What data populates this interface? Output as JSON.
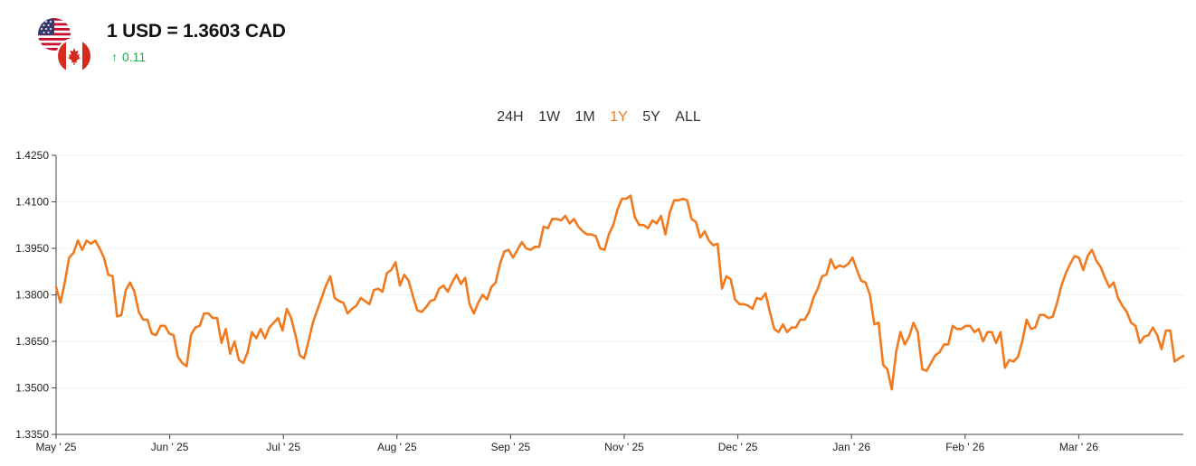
{
  "header": {
    "rate_text": "1 USD = 1.3603 CAD",
    "change_arrow": "↑",
    "change_value": "0.11",
    "change_color": "#22b04b",
    "base_flag": "us-flag-icon",
    "quote_flag": "canada-flag-icon"
  },
  "range_selector": {
    "options": [
      "24H",
      "1W",
      "1M",
      "1Y",
      "5Y",
      "ALL"
    ],
    "selected": "1Y",
    "active_color": "#f07a1f"
  },
  "chart_data": {
    "type": "line",
    "line_color": "#f07a1f",
    "title": "",
    "xlabel": "",
    "ylabel": "",
    "ylim": [
      1.335,
      1.425
    ],
    "y_ticks": [
      "1.3350",
      "1.3500",
      "1.3650",
      "1.3800",
      "1.3950",
      "1.4100",
      "1.4250"
    ],
    "x_ticks": [
      "May ' 25",
      "Jun ' 25",
      "Jul ' 25",
      "Aug ' 25",
      "Sep ' 25",
      "Nov ' 25",
      "Dec ' 25",
      "Jan ' 26",
      "Feb ' 26",
      "Mar ' 26"
    ],
    "grid": true,
    "series": [
      {
        "name": "",
        "values": [
          1.3825,
          1.3775,
          1.384,
          1.392,
          1.3935,
          1.3975,
          1.3945,
          1.3975,
          1.3965,
          1.3975,
          1.395,
          1.392,
          1.3865,
          1.386,
          1.373,
          1.3735,
          1.3815,
          1.384,
          1.381,
          1.3745,
          1.372,
          1.372,
          1.3675,
          1.367,
          1.37,
          1.37,
          1.3675,
          1.367,
          1.36,
          1.358,
          1.357,
          1.367,
          1.3695,
          1.37,
          1.374,
          1.374,
          1.3725,
          1.3725,
          1.3645,
          1.369,
          1.361,
          1.365,
          1.359,
          1.358,
          1.3615,
          1.368,
          1.366,
          1.369,
          1.366,
          1.3695,
          1.371,
          1.3725,
          1.3685,
          1.3755,
          1.3725,
          1.367,
          1.3605,
          1.3595,
          1.365,
          1.371,
          1.375,
          1.379,
          1.383,
          1.386,
          1.379,
          1.378,
          1.3775,
          1.374,
          1.3755,
          1.3765,
          1.379,
          1.378,
          1.377,
          1.3815,
          1.382,
          1.381,
          1.387,
          1.388,
          1.3905,
          1.383,
          1.3865,
          1.3845,
          1.3795,
          1.375,
          1.3745,
          1.376,
          1.378,
          1.3785,
          1.382,
          1.383,
          1.381,
          1.384,
          1.3865,
          1.3835,
          1.3855,
          1.377,
          1.374,
          1.3775,
          1.38,
          1.3785,
          1.3825,
          1.384,
          1.39,
          1.394,
          1.3945,
          1.392,
          1.3945,
          1.397,
          1.395,
          1.3945,
          1.3955,
          1.3955,
          1.402,
          1.4015,
          1.4045,
          1.4045,
          1.404,
          1.4055,
          1.403,
          1.4045,
          1.402,
          1.4005,
          1.3995,
          1.3995,
          1.399,
          1.395,
          1.3945,
          1.3995,
          1.4025,
          1.4075,
          1.411,
          1.411,
          1.412,
          1.405,
          1.4025,
          1.4025,
          1.4015,
          1.404,
          1.403,
          1.4055,
          1.3995,
          1.4065,
          1.4105,
          1.4105,
          1.411,
          1.4105,
          1.4045,
          1.4035,
          1.3985,
          1.4005,
          1.3975,
          1.396,
          1.3965,
          1.382,
          1.386,
          1.385,
          1.3785,
          1.377,
          1.377,
          1.3765,
          1.3755,
          1.379,
          1.3785,
          1.3805,
          1.3745,
          1.369,
          1.368,
          1.3705,
          1.368,
          1.3695,
          1.3695,
          1.372,
          1.372,
          1.3745,
          1.379,
          1.382,
          1.386,
          1.3865,
          1.3915,
          1.3885,
          1.3895,
          1.389,
          1.39,
          1.392,
          1.388,
          1.3845,
          1.384,
          1.38,
          1.3705,
          1.371,
          1.3575,
          1.356,
          1.3495,
          1.3615,
          1.368,
          1.364,
          1.3665,
          1.371,
          1.368,
          1.356,
          1.3555,
          1.358,
          1.3605,
          1.3615,
          1.364,
          1.364,
          1.37,
          1.369,
          1.369,
          1.37,
          1.37,
          1.368,
          1.369,
          1.365,
          1.368,
          1.368,
          1.3645,
          1.368,
          1.3565,
          1.359,
          1.3585,
          1.36,
          1.365,
          1.372,
          1.369,
          1.3695,
          1.3735,
          1.3735,
          1.3725,
          1.373,
          1.3775,
          1.383,
          1.387,
          1.39,
          1.3925,
          1.392,
          1.388,
          1.3925,
          1.3945,
          1.391,
          1.389,
          1.3855,
          1.3825,
          1.384,
          1.379,
          1.3765,
          1.3745,
          1.371,
          1.37,
          1.3645,
          1.3665,
          1.367,
          1.3695,
          1.367,
          1.3625,
          1.3685,
          1.3685,
          1.3585,
          1.3595,
          1.3603
        ]
      }
    ]
  }
}
